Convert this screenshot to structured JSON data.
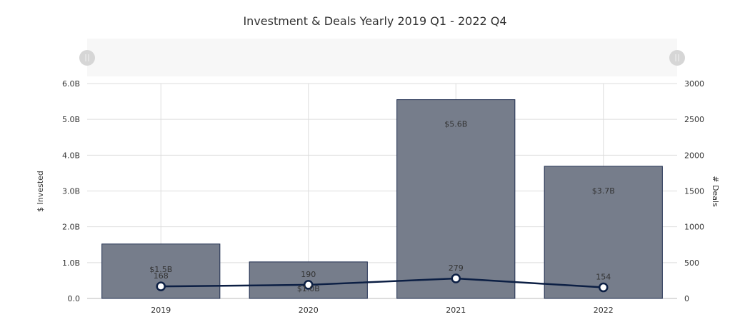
{
  "chart_data": {
    "type": "bar+line",
    "title": "Investment & Deals Yearly 2019 Q1 - 2022 Q4",
    "categories": [
      "2019",
      "2020",
      "2021",
      "2022"
    ],
    "series": [
      {
        "name": "$ Invested",
        "type": "bar",
        "axis": "left",
        "values": [
          1.52,
          1.02,
          5.55,
          3.69
        ],
        "labels": [
          "$1.5B",
          "$1.0B",
          "$5.6B",
          "$3.7B"
        ],
        "color": "#767d8b",
        "stroke": "#1f2d4f"
      },
      {
        "name": "# Deals",
        "type": "line",
        "axis": "right",
        "values": [
          168,
          190,
          279,
          154
        ],
        "labels": [
          "168",
          "190",
          "279",
          "154"
        ],
        "color": "#0c1f44"
      }
    ],
    "ylabel_left": "$ Invested",
    "ylabel_right": "# Deals",
    "ylim_left": [
      0,
      6
    ],
    "ylim_right": [
      0,
      3000
    ],
    "yticks_left": [
      "0.0",
      "1.0B",
      "2.0B",
      "3.0B",
      "4.0B",
      "5.0B",
      "6.0B"
    ],
    "yticks_right": [
      "0",
      "500",
      "1000",
      "1500",
      "2000",
      "2500",
      "3000"
    ],
    "grid": true,
    "range_slider": true
  }
}
